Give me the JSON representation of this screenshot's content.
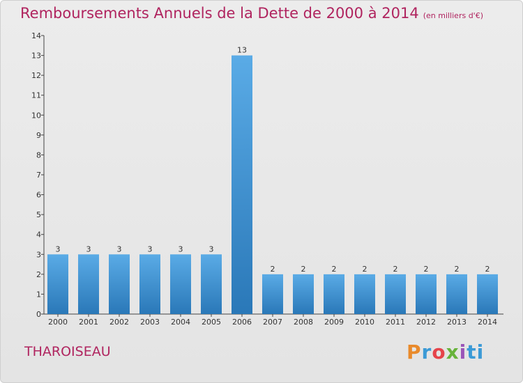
{
  "title": "Remboursements Annuels de la Dette de 2000 à 2014",
  "unit_label": "(en milliers d'€)",
  "commune": "THAROISEAU",
  "logo_text": "Proxiti",
  "colors": {
    "title": "#b0245f",
    "bar_top": "#5aabe6",
    "bar_bottom": "#2a78b8",
    "axis": "#444444"
  },
  "chart_data": {
    "type": "bar",
    "categories": [
      "2000",
      "2001",
      "2002",
      "2003",
      "2004",
      "2005",
      "2006",
      "2007",
      "2008",
      "2009",
      "2010",
      "2011",
      "2012",
      "2013",
      "2014"
    ],
    "values": [
      3,
      3,
      3,
      3,
      3,
      3,
      13,
      2,
      2,
      2,
      2,
      2,
      2,
      2,
      2
    ],
    "data_labels": [
      "3",
      "3",
      "3",
      "3",
      "3",
      "3",
      "13",
      "2",
      "2",
      "2",
      "2",
      "2",
      "2",
      "2",
      "2"
    ],
    "yticks": [
      "0",
      "1",
      "2",
      "3",
      "4",
      "5",
      "6",
      "7",
      "8",
      "9",
      "10",
      "11",
      "12",
      "13",
      "14"
    ],
    "ylim": [
      0,
      14
    ],
    "xlabel": "",
    "ylabel": "",
    "grid": false,
    "legend": "none"
  }
}
